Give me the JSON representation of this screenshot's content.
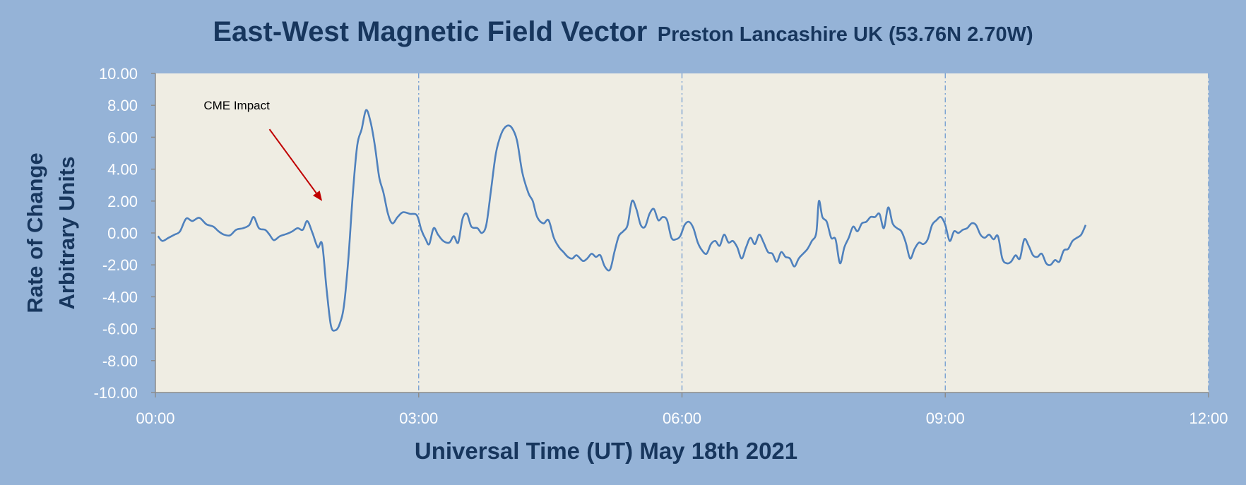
{
  "chart_data": {
    "type": "line",
    "title": "East-West Magnetic Field Vector",
    "subtitle": "Preston Lancashire UK (53.76N 2.70W)",
    "xlabel": "Universal Time (UT) May 18th 2021",
    "ylabel_line1": "Rate of Change",
    "ylabel_line2": "Arbitrary Units",
    "xlim_hours": [
      0,
      12
    ],
    "ylim": [
      -10,
      10
    ],
    "x_ticks": [
      {
        "hour": 0,
        "label": "00:00"
      },
      {
        "hour": 3,
        "label": "03:00"
      },
      {
        "hour": 6,
        "label": "06:00"
      },
      {
        "hour": 9,
        "label": "09:00"
      },
      {
        "hour": 12,
        "label": "12:00"
      }
    ],
    "y_ticks": [
      {
        "value": 10,
        "label": "10.00"
      },
      {
        "value": 8,
        "label": "8.00"
      },
      {
        "value": 6,
        "label": "6.00"
      },
      {
        "value": 4,
        "label": "4.00"
      },
      {
        "value": 2,
        "label": "2.00"
      },
      {
        "value": 0,
        "label": "0.00"
      },
      {
        "value": -2,
        "label": "-2.00"
      },
      {
        "value": -4,
        "label": "-4.00"
      },
      {
        "value": -6,
        "label": "-6.00"
      },
      {
        "value": -8,
        "label": "-8.00"
      },
      {
        "value": -10,
        "label": "-10.00"
      }
    ],
    "vertical_gridlines_hours": [
      3,
      6,
      9,
      12
    ],
    "annotation": {
      "text": "CME Impact",
      "arrow_from": {
        "hour": 1.3,
        "value": 6.5
      },
      "arrow_to": {
        "hour": 1.9,
        "value": 2.0
      }
    },
    "colors": {
      "background": "#95b3d7",
      "plot_area": "#efede3",
      "line": "#4f81bd",
      "grid": "#6f9bd1",
      "text_dark": "#17365d",
      "tick_text": "#ffffff",
      "arrow": "#c00000",
      "axis": "#8c8c8c"
    },
    "series": [
      {
        "name": "",
        "points": [
          [
            0.03,
            -0.2
          ],
          [
            0.08,
            -0.5
          ],
          [
            0.15,
            -0.3
          ],
          [
            0.22,
            -0.1
          ],
          [
            0.28,
            0.1
          ],
          [
            0.35,
            0.9
          ],
          [
            0.42,
            0.75
          ],
          [
            0.5,
            0.95
          ],
          [
            0.58,
            0.55
          ],
          [
            0.66,
            0.4
          ],
          [
            0.72,
            0.1
          ],
          [
            0.78,
            -0.1
          ],
          [
            0.85,
            -0.15
          ],
          [
            0.92,
            0.2
          ],
          [
            1.0,
            0.3
          ],
          [
            1.07,
            0.5
          ],
          [
            1.12,
            1.0
          ],
          [
            1.18,
            0.3
          ],
          [
            1.25,
            0.2
          ],
          [
            1.3,
            -0.1
          ],
          [
            1.35,
            -0.45
          ],
          [
            1.42,
            -0.2
          ],
          [
            1.5,
            -0.05
          ],
          [
            1.56,
            0.1
          ],
          [
            1.62,
            0.3
          ],
          [
            1.68,
            0.2
          ],
          [
            1.73,
            0.75
          ],
          [
            1.79,
            0.0
          ],
          [
            1.85,
            -0.9
          ],
          [
            1.9,
            -0.7
          ],
          [
            1.95,
            -3.5
          ],
          [
            2.0,
            -5.8
          ],
          [
            2.05,
            -6.1
          ],
          [
            2.1,
            -5.7
          ],
          [
            2.15,
            -4.5
          ],
          [
            2.2,
            -1.5
          ],
          [
            2.25,
            2.5
          ],
          [
            2.3,
            5.5
          ],
          [
            2.35,
            6.5
          ],
          [
            2.4,
            7.7
          ],
          [
            2.45,
            7.0
          ],
          [
            2.5,
            5.5
          ],
          [
            2.55,
            3.5
          ],
          [
            2.6,
            2.5
          ],
          [
            2.65,
            1.2
          ],
          [
            2.7,
            0.6
          ],
          [
            2.76,
            1.0
          ],
          [
            2.82,
            1.3
          ],
          [
            2.9,
            1.2
          ],
          [
            2.98,
            1.1
          ],
          [
            3.03,
            0.2
          ],
          [
            3.08,
            -0.4
          ],
          [
            3.12,
            -0.7
          ],
          [
            3.17,
            0.3
          ],
          [
            3.22,
            -0.1
          ],
          [
            3.28,
            -0.5
          ],
          [
            3.35,
            -0.6
          ],
          [
            3.4,
            -0.2
          ],
          [
            3.45,
            -0.6
          ],
          [
            3.5,
            0.9
          ],
          [
            3.55,
            1.2
          ],
          [
            3.6,
            0.4
          ],
          [
            3.67,
            0.3
          ],
          [
            3.72,
            0.0
          ],
          [
            3.77,
            0.5
          ],
          [
            3.82,
            2.5
          ],
          [
            3.88,
            5.0
          ],
          [
            3.94,
            6.2
          ],
          [
            4.0,
            6.7
          ],
          [
            4.06,
            6.6
          ],
          [
            4.12,
            5.8
          ],
          [
            4.18,
            3.8
          ],
          [
            4.25,
            2.5
          ],
          [
            4.3,
            2.0
          ],
          [
            4.35,
            1.0
          ],
          [
            4.42,
            0.6
          ],
          [
            4.48,
            0.8
          ],
          [
            4.54,
            -0.3
          ],
          [
            4.6,
            -0.9
          ],
          [
            4.65,
            -1.2
          ],
          [
            4.7,
            -1.5
          ],
          [
            4.75,
            -1.6
          ],
          [
            4.8,
            -1.4
          ],
          [
            4.87,
            -1.75
          ],
          [
            4.92,
            -1.6
          ],
          [
            4.97,
            -1.3
          ],
          [
            5.02,
            -1.5
          ],
          [
            5.07,
            -1.4
          ],
          [
            5.12,
            -2.1
          ],
          [
            5.18,
            -2.3
          ],
          [
            5.23,
            -1.2
          ],
          [
            5.28,
            -0.2
          ],
          [
            5.33,
            0.1
          ],
          [
            5.38,
            0.5
          ],
          [
            5.43,
            2.0
          ],
          [
            5.48,
            1.5
          ],
          [
            5.53,
            0.5
          ],
          [
            5.58,
            0.4
          ],
          [
            5.63,
            1.2
          ],
          [
            5.68,
            1.5
          ],
          [
            5.73,
            0.8
          ],
          [
            5.78,
            1.0
          ],
          [
            5.83,
            0.8
          ],
          [
            5.88,
            -0.3
          ],
          [
            5.93,
            -0.4
          ],
          [
            5.98,
            -0.2
          ],
          [
            6.03,
            0.5
          ],
          [
            6.08,
            0.7
          ],
          [
            6.13,
            0.3
          ],
          [
            6.18,
            -0.6
          ],
          [
            6.23,
            -1.1
          ],
          [
            6.28,
            -1.3
          ],
          [
            6.33,
            -0.7
          ],
          [
            6.38,
            -0.5
          ],
          [
            6.43,
            -0.8
          ],
          [
            6.48,
            -0.1
          ],
          [
            6.53,
            -0.6
          ],
          [
            6.58,
            -0.5
          ],
          [
            6.63,
            -0.9
          ],
          [
            6.68,
            -1.6
          ],
          [
            6.73,
            -0.9
          ],
          [
            6.78,
            -0.3
          ],
          [
            6.83,
            -0.7
          ],
          [
            6.88,
            -0.1
          ],
          [
            6.93,
            -0.6
          ],
          [
            6.98,
            -1.2
          ],
          [
            7.03,
            -1.3
          ],
          [
            7.08,
            -1.8
          ],
          [
            7.13,
            -1.2
          ],
          [
            7.18,
            -1.5
          ],
          [
            7.23,
            -1.6
          ],
          [
            7.28,
            -2.1
          ],
          [
            7.33,
            -1.6
          ],
          [
            7.38,
            -1.3
          ],
          [
            7.43,
            -1.0
          ],
          [
            7.48,
            -0.5
          ],
          [
            7.53,
            0.0
          ],
          [
            7.56,
            2.0
          ],
          [
            7.6,
            1.0
          ],
          [
            7.65,
            0.7
          ],
          [
            7.7,
            -0.3
          ],
          [
            7.75,
            -0.4
          ],
          [
            7.8,
            -1.9
          ],
          [
            7.85,
            -0.9
          ],
          [
            7.9,
            -0.3
          ],
          [
            7.95,
            0.4
          ],
          [
            8.0,
            0.1
          ],
          [
            8.05,
            0.6
          ],
          [
            8.1,
            0.7
          ],
          [
            8.15,
            1.0
          ],
          [
            8.2,
            1.0
          ],
          [
            8.25,
            1.2
          ],
          [
            8.3,
            0.3
          ],
          [
            8.35,
            1.6
          ],
          [
            8.4,
            0.6
          ],
          [
            8.45,
            0.3
          ],
          [
            8.5,
            0.1
          ],
          [
            8.55,
            -0.6
          ],
          [
            8.6,
            -1.6
          ],
          [
            8.65,
            -1.0
          ],
          [
            8.7,
            -0.6
          ],
          [
            8.75,
            -0.7
          ],
          [
            8.8,
            -0.4
          ],
          [
            8.85,
            0.5
          ],
          [
            8.9,
            0.8
          ],
          [
            8.95,
            1.0
          ],
          [
            9.0,
            0.5
          ],
          [
            9.05,
            -0.5
          ],
          [
            9.1,
            0.1
          ],
          [
            9.15,
            0.0
          ],
          [
            9.2,
            0.2
          ],
          [
            9.25,
            0.3
          ],
          [
            9.3,
            0.6
          ],
          [
            9.35,
            0.5
          ],
          [
            9.4,
            -0.1
          ],
          [
            9.45,
            -0.3
          ],
          [
            9.5,
            -0.1
          ],
          [
            9.55,
            -0.4
          ],
          [
            9.6,
            -0.2
          ],
          [
            9.65,
            -1.6
          ],
          [
            9.7,
            -1.9
          ],
          [
            9.75,
            -1.8
          ],
          [
            9.8,
            -1.4
          ],
          [
            9.85,
            -1.6
          ],
          [
            9.9,
            -0.4
          ],
          [
            9.95,
            -0.8
          ],
          [
            10.0,
            -1.4
          ],
          [
            10.05,
            -1.5
          ],
          [
            10.1,
            -1.3
          ],
          [
            10.15,
            -1.9
          ],
          [
            10.2,
            -2.0
          ],
          [
            10.25,
            -1.7
          ],
          [
            10.3,
            -1.8
          ],
          [
            10.35,
            -1.1
          ],
          [
            10.4,
            -1.0
          ],
          [
            10.45,
            -0.5
          ],
          [
            10.5,
            -0.3
          ],
          [
            10.55,
            -0.1
          ],
          [
            10.6,
            0.5
          ]
        ]
      }
    ]
  }
}
